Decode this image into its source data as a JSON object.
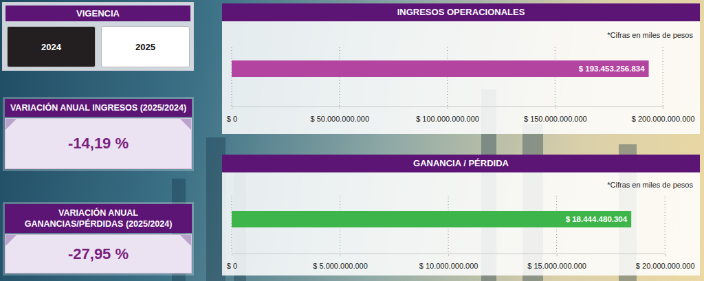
{
  "vigencia": {
    "title": "VIGENCIA",
    "options": [
      "2024",
      "2025"
    ],
    "selected": "2024"
  },
  "kpis": [
    {
      "title": "VARIACIÓN ANUAL INGRESOS (2025/2024)",
      "value": "-14,19 %"
    },
    {
      "title": "VARIACIÓN ANUAL GANANCIAS/PÉRDIDAS (2025/2024)",
      "value": "-27,95 %"
    }
  ],
  "chart_data": [
    {
      "type": "bar",
      "orientation": "horizontal",
      "title": "INGRESOS OPERACIONALES",
      "subtitle": "*Cifras en miles de pesos",
      "categories": [
        null
      ],
      "values": [
        193453256834
      ],
      "value_labels": [
        "$ 193.453.256.834"
      ],
      "data_labels": true,
      "color": "#b3449f",
      "grid": true,
      "tick_labels": "x",
      "xlim": [
        0,
        200000000000
      ],
      "xticks": [
        {
          "value": 0,
          "label": "$ 0"
        },
        {
          "value": 50000000000,
          "label": "$ 50.000.000.000"
        },
        {
          "value": 100000000000,
          "label": "$ 100.000.000.000"
        },
        {
          "value": 150000000000,
          "label": "$ 150.000.000.000"
        },
        {
          "value": 200000000000,
          "label": "$ 200.000.000.000"
        }
      ]
    },
    {
      "type": "bar",
      "orientation": "horizontal",
      "title": "GANANCIA / PÉRDIDA",
      "subtitle": "*Cifras en miles de pesos",
      "categories": [
        null
      ],
      "values": [
        18444480304
      ],
      "value_labels": [
        "$ 18.444.480.304"
      ],
      "data_labels": true,
      "color": "#3db54a",
      "grid": true,
      "tick_labels": "x",
      "xlim": [
        0,
        20000000000
      ],
      "xticks": [
        {
          "value": 0,
          "label": "$ 0"
        },
        {
          "value": 5000000000,
          "label": "$ 5.000.000.000"
        },
        {
          "value": 10000000000,
          "label": "$ 10.000.000.000"
        },
        {
          "value": 15000000000,
          "label": "$ 15.000.000.000"
        },
        {
          "value": 20000000000,
          "label": "$ 20.000.000.000"
        }
      ]
    }
  ]
}
